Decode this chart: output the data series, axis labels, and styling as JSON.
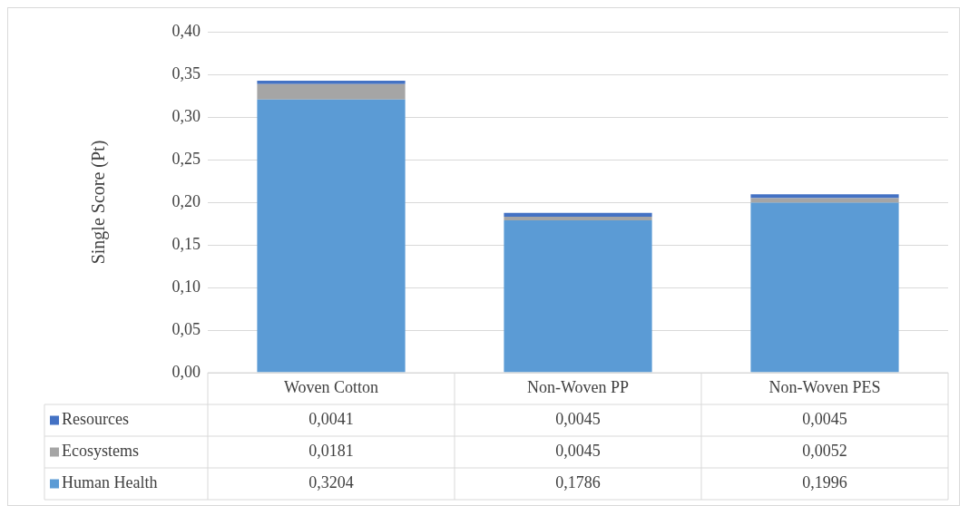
{
  "chart_data": {
    "type": "bar",
    "stacked": true,
    "ylabel": "Single Score (Pt)",
    "categories": [
      "Woven Cotton",
      "Non-Woven PP",
      "Non-Woven PES"
    ],
    "series": [
      {
        "name": "Human Health",
        "color": "#5b9bd5",
        "values": [
          0.3204,
          0.1786,
          0.1996
        ],
        "value_labels": [
          "0,3204",
          "0,1786",
          "0,1996"
        ]
      },
      {
        "name": "Ecosystems",
        "color": "#a5a5a5",
        "values": [
          0.0181,
          0.0045,
          0.0052
        ],
        "value_labels": [
          "0,0181",
          "0,0045",
          "0,0052"
        ]
      },
      {
        "name": "Resources",
        "color": "#4472c4",
        "values": [
          0.0041,
          0.0045,
          0.0045
        ],
        "value_labels": [
          "0,0041",
          "0,0045",
          "0,0045"
        ]
      }
    ],
    "ylim": [
      0,
      0.4
    ],
    "yticks": [
      {
        "value": 0,
        "label": "0,00"
      },
      {
        "value": 0.05,
        "label": "0,05"
      },
      {
        "value": 0.1,
        "label": "0,10"
      },
      {
        "value": 0.15,
        "label": "0,15"
      },
      {
        "value": 0.2,
        "label": "0,20"
      },
      {
        "value": 0.25,
        "label": "0,25"
      },
      {
        "value": 0.3,
        "label": "0,30"
      },
      {
        "value": 0.35,
        "label": "0,35"
      },
      {
        "value": 0.4,
        "label": "0,40"
      }
    ],
    "grid": "y",
    "legend": "bottom"
  }
}
